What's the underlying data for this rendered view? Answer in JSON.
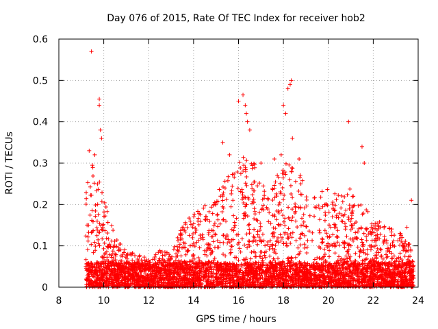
{
  "chart_data": {
    "type": "scatter",
    "title": "Day 076 of 2015, Rate Of TEC Index for receiver hob2",
    "xlabel": "GPS time / hours",
    "ylabel": "ROTI / TECUs",
    "xlim": [
      8,
      24
    ],
    "ylim": [
      0,
      0.6
    ],
    "x_ticks": [
      8,
      10,
      12,
      14,
      16,
      18,
      20,
      22,
      24
    ],
    "x_tick_labels": [
      "8",
      "10",
      "12",
      "14",
      "16",
      "18",
      "20",
      "22",
      "24"
    ],
    "y_ticks": [
      0,
      0.1,
      0.2,
      0.3,
      0.4,
      0.5,
      0.6
    ],
    "y_tick_labels": [
      "0",
      "0.1",
      "0.2",
      "0.3",
      "0.4",
      "0.5",
      "0.6"
    ],
    "grid": true,
    "marker": "+",
    "color": "#ff0000",
    "series": [
      {
        "name": "ROTI",
        "x_range": [
          9.2,
          23.8
        ],
        "envelope": {
          "x": [
            9.2,
            9.5,
            9.7,
            10.0,
            10.5,
            11.0,
            11.5,
            12.0,
            12.5,
            13.0,
            13.5,
            14.0,
            14.5,
            15.0,
            15.5,
            16.0,
            16.3,
            16.7,
            17.0,
            17.5,
            18.0,
            18.3,
            18.7,
            19.0,
            19.5,
            20.0,
            20.5,
            21.0,
            21.5,
            22.0,
            22.5,
            23.0,
            23.5,
            23.8
          ],
          "typical_max": [
            0.26,
            0.3,
            0.28,
            0.22,
            0.12,
            0.09,
            0.08,
            0.07,
            0.09,
            0.08,
            0.15,
            0.18,
            0.2,
            0.22,
            0.28,
            0.3,
            0.33,
            0.3,
            0.27,
            0.25,
            0.3,
            0.32,
            0.28,
            0.24,
            0.22,
            0.25,
            0.22,
            0.24,
            0.2,
            0.17,
            0.15,
            0.14,
            0.12,
            0.1
          ]
        },
        "notable_points": [
          {
            "x": 9.45,
            "y": 0.57
          },
          {
            "x": 9.8,
            "y": 0.455
          },
          {
            "x": 9.8,
            "y": 0.44
          },
          {
            "x": 9.85,
            "y": 0.38
          },
          {
            "x": 9.9,
            "y": 0.36
          },
          {
            "x": 9.35,
            "y": 0.33
          },
          {
            "x": 9.6,
            "y": 0.32
          },
          {
            "x": 15.3,
            "y": 0.35
          },
          {
            "x": 15.6,
            "y": 0.32
          },
          {
            "x": 16.0,
            "y": 0.45
          },
          {
            "x": 16.2,
            "y": 0.465
          },
          {
            "x": 16.3,
            "y": 0.44
          },
          {
            "x": 16.35,
            "y": 0.42
          },
          {
            "x": 16.4,
            "y": 0.4
          },
          {
            "x": 16.5,
            "y": 0.38
          },
          {
            "x": 17.0,
            "y": 0.3
          },
          {
            "x": 17.6,
            "y": 0.31
          },
          {
            "x": 17.9,
            "y": 0.32
          },
          {
            "x": 18.0,
            "y": 0.44
          },
          {
            "x": 18.1,
            "y": 0.42
          },
          {
            "x": 18.2,
            "y": 0.48
          },
          {
            "x": 18.3,
            "y": 0.49
          },
          {
            "x": 18.35,
            "y": 0.5
          },
          {
            "x": 18.4,
            "y": 0.36
          },
          {
            "x": 18.7,
            "y": 0.31
          },
          {
            "x": 20.9,
            "y": 0.4
          },
          {
            "x": 21.5,
            "y": 0.34
          },
          {
            "x": 21.6,
            "y": 0.3
          },
          {
            "x": 23.7,
            "y": 0.21
          },
          {
            "x": 23.5,
            "y": 0.145
          }
        ]
      }
    ]
  }
}
